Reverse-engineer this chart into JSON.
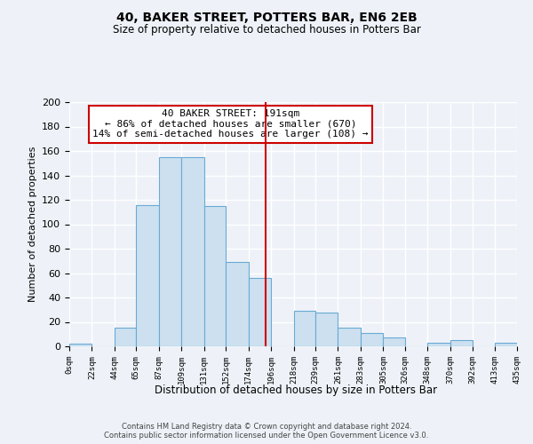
{
  "title": "40, BAKER STREET, POTTERS BAR, EN6 2EB",
  "subtitle": "Size of property relative to detached houses in Potters Bar",
  "xlabel": "Distribution of detached houses by size in Potters Bar",
  "ylabel": "Number of detached properties",
  "bar_color": "#cce0f0",
  "bar_edge_color": "#6aaad4",
  "background_color": "#eef2f8",
  "grid_color": "#ffffff",
  "bin_edges": [
    0,
    22,
    44,
    65,
    87,
    109,
    131,
    152,
    174,
    196,
    218,
    239,
    261,
    283,
    305,
    326,
    348,
    370,
    392,
    413,
    435
  ],
  "bin_labels": [
    "0sqm",
    "22sqm",
    "44sqm",
    "65sqm",
    "87sqm",
    "109sqm",
    "131sqm",
    "152sqm",
    "174sqm",
    "196sqm",
    "218sqm",
    "239sqm",
    "261sqm",
    "283sqm",
    "305sqm",
    "326sqm",
    "348sqm",
    "370sqm",
    "392sqm",
    "413sqm",
    "435sqm"
  ],
  "bar_heights": [
    2,
    0,
    15,
    116,
    155,
    155,
    115,
    69,
    56,
    0,
    29,
    28,
    15,
    11,
    7,
    0,
    3,
    5,
    0,
    3
  ],
  "vline_x": 191,
  "vline_color": "#cc0000",
  "annotation_box_text": "40 BAKER STREET: 191sqm\n← 86% of detached houses are smaller (670)\n14% of semi-detached houses are larger (108) →",
  "annotation_box_color": "#cc0000",
  "ylim": [
    0,
    200
  ],
  "yticks": [
    0,
    20,
    40,
    60,
    80,
    100,
    120,
    140,
    160,
    180,
    200
  ],
  "footer_line1": "Contains HM Land Registry data © Crown copyright and database right 2024.",
  "footer_line2": "Contains public sector information licensed under the Open Government Licence v3.0."
}
